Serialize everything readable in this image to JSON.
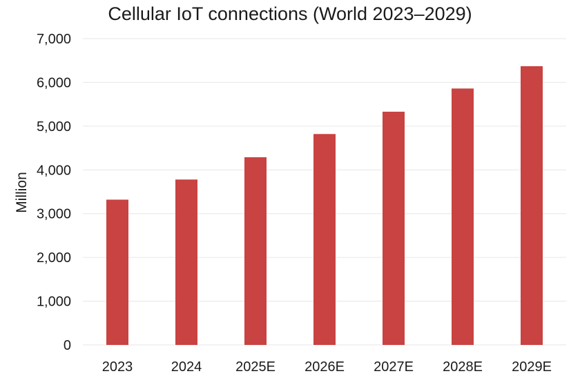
{
  "chart_data": {
    "type": "bar",
    "title": "Cellular IoT connections (World 2023–2029)",
    "xlabel": "",
    "ylabel": "Million",
    "categories": [
      "2023",
      "2024",
      "2025E",
      "2026E",
      "2027E",
      "2028E",
      "2029E"
    ],
    "values": [
      3320,
      3780,
      4290,
      4820,
      5330,
      5860,
      6370
    ],
    "ylim": [
      0,
      7000
    ],
    "yticks": [
      0,
      1000,
      2000,
      3000,
      4000,
      5000,
      6000,
      7000
    ],
    "ytick_labels": [
      "0",
      "1,000",
      "2,000",
      "3,000",
      "4,000",
      "5,000",
      "6,000",
      "7,000"
    ],
    "grid": true,
    "bar_color": "#c84341",
    "legend": "none"
  }
}
